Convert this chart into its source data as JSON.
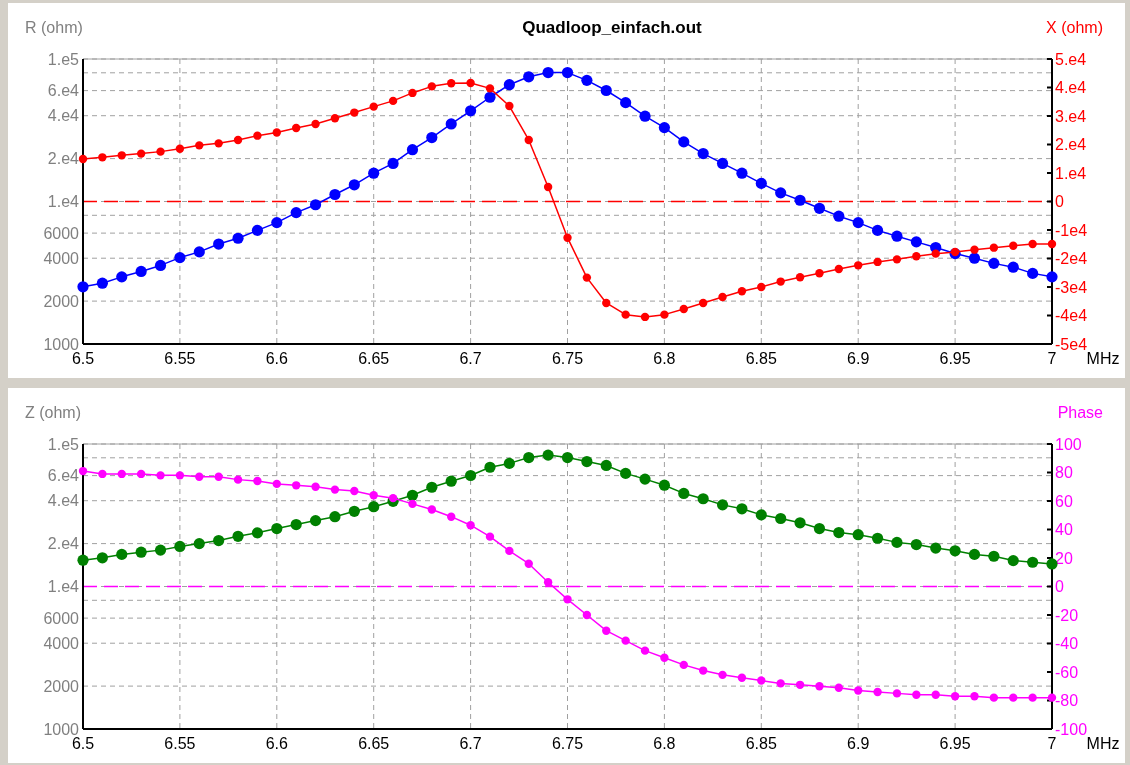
{
  "chart_data": [
    {
      "type": "line",
      "title": "Quadloop_einfach.out",
      "ylabel": "R (ohm)",
      "y2label": "X (ohm)",
      "xlabel": "MHz",
      "log": "y",
      "grid": true,
      "marker": "circle",
      "line_style": "solid",
      "x": [
        6.5,
        6.51,
        6.52,
        6.53,
        6.54,
        6.55,
        6.56,
        6.57,
        6.58,
        6.59,
        6.6,
        6.61,
        6.62,
        6.63,
        6.64,
        6.65,
        6.66,
        6.67,
        6.68,
        6.69,
        6.7,
        6.71,
        6.72,
        6.73,
        6.74,
        6.75,
        6.76,
        6.77,
        6.78,
        6.79,
        6.8,
        6.81,
        6.82,
        6.83,
        6.84,
        6.85,
        6.86,
        6.87,
        6.88,
        6.89,
        6.9,
        6.91,
        6.92,
        6.93,
        6.94,
        6.95,
        6.96,
        6.97,
        6.98,
        6.99,
        7
      ],
      "xlim": [
        6.5,
        7
      ],
      "xticks": [
        6.5,
        6.55,
        6.6,
        6.65,
        6.7,
        6.75,
        6.8,
        6.85,
        6.9,
        6.95,
        7
      ],
      "ylim": [
        1000,
        100000
      ],
      "yticks": [
        1000,
        2000,
        4000,
        6000,
        {
          "value": 8000,
          "label": null
        },
        {
          "value": 10000,
          "label": "1.e4"
        },
        {
          "value": 20000,
          "label": "2.e4"
        },
        {
          "value": 40000,
          "label": "4.e4"
        },
        {
          "value": 60000,
          "label": "6.e4"
        },
        {
          "value": 80000,
          "label": null
        },
        {
          "value": 100000,
          "label": "1.e5"
        }
      ],
      "y2lim": [
        -50000,
        50000
      ],
      "y2ticks": [
        {
          "value": -50000,
          "label": "-5e4"
        },
        {
          "value": -40000,
          "label": "-4e4"
        },
        {
          "value": -30000,
          "label": "-3e4"
        },
        {
          "value": -20000,
          "label": "-2e4"
        },
        {
          "value": -10000,
          "label": "-1e4"
        },
        0,
        {
          "value": 10000,
          "label": "1.e4"
        },
        {
          "value": 20000,
          "label": "2.e4"
        },
        {
          "value": 30000,
          "label": "3.e4"
        },
        {
          "value": 40000,
          "label": "4.e4"
        },
        {
          "value": 50000,
          "label": "5.e4"
        }
      ],
      "ref_lines": [
        {
          "axis": "y2",
          "value": 0,
          "color": "#ff0000",
          "line_style": "dashed"
        }
      ],
      "series": [
        {
          "color": "#0000ff",
          "values": [
            2520,
            2670,
            2960,
            3230,
            3560,
            4040,
            4430,
            5030,
            5520,
            6270,
            7110,
            8360,
            9490,
            11200,
            13100,
            15800,
            18500,
            23100,
            28100,
            35000,
            43300,
            53900,
            66000,
            75000,
            80300,
            80300,
            70800,
            60100,
            49400,
            39700,
            33000,
            26200,
            21700,
            18500,
            15800,
            13400,
            11500,
            10200,
            8960,
            7890,
            7110,
            6270,
            5710,
            5210,
            4750,
            4310,
            4000,
            3680,
            3460,
            3130,
            2960
          ]
        },
        {
          "color": "#ff0000",
          "axis": "y2",
          "values": [
            14900,
            15500,
            16200,
            16800,
            17500,
            18500,
            19700,
            20400,
            21600,
            23100,
            24200,
            25800,
            27200,
            29200,
            31200,
            33300,
            35300,
            38100,
            40400,
            41500,
            41600,
            39700,
            33500,
            21600,
            5100,
            -12700,
            -26700,
            -35600,
            -39700,
            -40500,
            -39700,
            -37700,
            -35600,
            -33500,
            -31500,
            -30000,
            -28100,
            -26600,
            -25200,
            -23700,
            -22400,
            -21200,
            -20300,
            -19200,
            -18300,
            -17700,
            -16900,
            -16200,
            -15500,
            -14900,
            -14900
          ]
        }
      ]
    },
    {
      "type": "line",
      "ylabel": "Z (ohm)",
      "y2label": "Phase",
      "xlabel": "MHz",
      "log": "y",
      "grid": true,
      "marker": "circle",
      "line_style": "solid",
      "x": [
        6.5,
        6.51,
        6.52,
        6.53,
        6.54,
        6.55,
        6.56,
        6.57,
        6.58,
        6.59,
        6.6,
        6.61,
        6.62,
        6.63,
        6.64,
        6.65,
        6.66,
        6.67,
        6.68,
        6.69,
        6.7,
        6.71,
        6.72,
        6.73,
        6.74,
        6.75,
        6.76,
        6.77,
        6.78,
        6.79,
        6.8,
        6.81,
        6.82,
        6.83,
        6.84,
        6.85,
        6.86,
        6.87,
        6.88,
        6.89,
        6.9,
        6.91,
        6.92,
        6.93,
        6.94,
        6.95,
        6.96,
        6.97,
        6.98,
        6.99,
        7
      ],
      "xlim": [
        6.5,
        7
      ],
      "xticks": [
        6.5,
        6.55,
        6.6,
        6.65,
        6.7,
        6.75,
        6.8,
        6.85,
        6.9,
        6.95,
        7
      ],
      "ylim": [
        1000,
        100000
      ],
      "yticks": [
        1000,
        2000,
        4000,
        6000,
        {
          "value": 8000,
          "label": null
        },
        {
          "value": 10000,
          "label": "1.e4"
        },
        {
          "value": 20000,
          "label": "2.e4"
        },
        {
          "value": 40000,
          "label": "4.e4"
        },
        {
          "value": 60000,
          "label": "6.e4"
        },
        {
          "value": 80000,
          "label": null
        },
        {
          "value": 100000,
          "label": "1.e5"
        }
      ],
      "y2lim": [
        -100,
        100
      ],
      "y2ticks": [
        -100,
        -80,
        -60,
        -40,
        -20,
        0,
        20,
        40,
        60,
        80,
        100
      ],
      "ref_lines": [
        {
          "axis": "y2",
          "value": 0,
          "color": "#ff00ff",
          "line_style": "dashed"
        }
      ],
      "series": [
        {
          "color": "#008000",
          "values": [
            15300,
            15900,
            16800,
            17400,
            18000,
            19100,
            20000,
            21000,
            22500,
            23800,
            25500,
            27200,
            29000,
            30900,
            33700,
            36300,
            39600,
            43700,
            49700,
            54800,
            60100,
            68700,
            73100,
            80300,
            83600,
            80300,
            75300,
            70700,
            62200,
            56700,
            51400,
            45000,
            41300,
            37400,
            35100,
            31800,
            30000,
            28000,
            25500,
            23900,
            23100,
            21800,
            20400,
            19700,
            18600,
            17800,
            16800,
            16300,
            15200,
            14800,
            14400
          ]
        },
        {
          "color": "#ff00ff",
          "axis": "y2",
          "values": [
            81,
            79,
            79,
            79,
            78,
            78,
            77,
            77,
            75,
            74,
            72,
            71,
            70,
            68,
            67,
            64,
            62,
            58,
            54,
            49,
            43,
            35,
            25,
            16,
            3,
            -9,
            -20,
            -31,
            -38,
            -45,
            -50,
            -55,
            -59,
            -62,
            -64,
            -66,
            -68,
            -69,
            -70,
            -71,
            -73,
            -74,
            -75,
            -76,
            -76,
            -77,
            -77,
            -78,
            -78,
            -78,
            -78
          ]
        }
      ]
    }
  ]
}
